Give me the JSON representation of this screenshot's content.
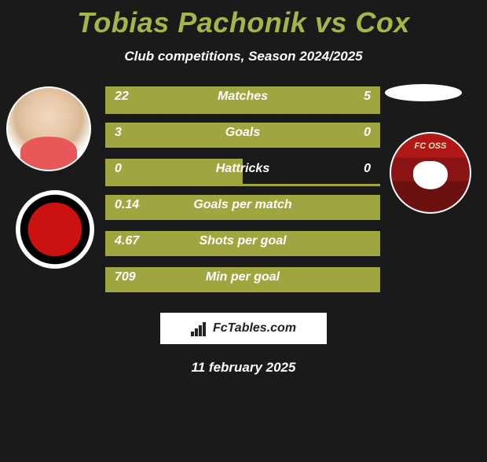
{
  "title": "Tobias Pachonik vs Cox",
  "subtitle": "Club competitions, Season 2024/2025",
  "date": "11 february 2025",
  "footer": "FcTables.com",
  "club_right_text": "FC OSS",
  "colors": {
    "bg": "#1a1a1a",
    "accent": "#a0a63f",
    "title": "#a5b54a",
    "text": "#ffffff"
  },
  "bars_width": 350,
  "rows": [
    {
      "label": "Matches",
      "left": "22",
      "right": "5",
      "fill_width": 350,
      "fill_left": 0,
      "line": true
    },
    {
      "label": "Goals",
      "left": "3",
      "right": "0",
      "fill_width": 350,
      "fill_left": 0,
      "line": false
    },
    {
      "label": "Hattricks",
      "left": "0",
      "right": "0",
      "fill_width": 175,
      "fill_left": 0,
      "line": true
    },
    {
      "label": "Goals per match",
      "left": "0.14",
      "right": "",
      "fill_width": 350,
      "fill_left": 0,
      "line": false
    },
    {
      "label": "Shots per goal",
      "left": "4.67",
      "right": "",
      "fill_width": 350,
      "fill_left": 0,
      "line": false
    },
    {
      "label": "Min per goal",
      "left": "709",
      "right": "",
      "fill_width": 350,
      "fill_left": 0,
      "line": false
    }
  ]
}
